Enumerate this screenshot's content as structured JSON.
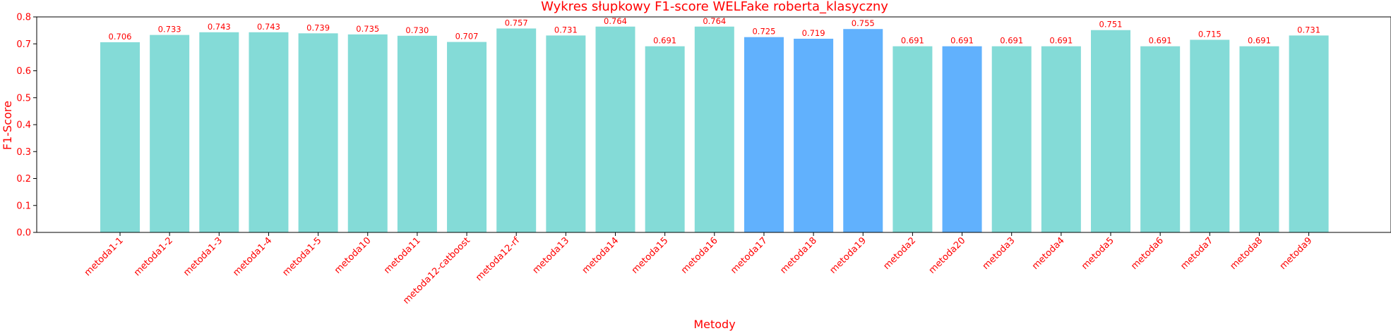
{
  "chart_data": {
    "type": "bar",
    "title": "Wykres słupkowy F1-score WELFake roberta_klasyczny",
    "xlabel": "Metody",
    "ylabel": "F1-Score",
    "ylim": [
      0,
      0.8
    ],
    "yticks": [
      "0.0",
      "0.1",
      "0.2",
      "0.3",
      "0.4",
      "0.5",
      "0.6",
      "0.7",
      "0.8"
    ],
    "grid": false,
    "categories": [
      "metoda1-1",
      "metoda1-2",
      "metoda1-3",
      "metoda1-4",
      "metoda1-5",
      "metoda10",
      "metoda11",
      "metoda12-catboost",
      "metoda12-rf",
      "metoda13",
      "metoda14",
      "metoda15",
      "metoda16",
      "metoda17",
      "metoda18",
      "metoda19",
      "metoda2",
      "metoda20",
      "metoda3",
      "metoda4",
      "metoda5",
      "metoda6",
      "metoda7",
      "metoda8",
      "metoda9"
    ],
    "values": [
      0.706,
      0.733,
      0.743,
      0.743,
      0.739,
      0.735,
      0.73,
      0.707,
      0.757,
      0.731,
      0.764,
      0.691,
      0.764,
      0.725,
      0.719,
      0.755,
      0.691,
      0.691,
      0.691,
      0.691,
      0.751,
      0.691,
      0.715,
      0.691,
      0.731
    ],
    "value_labels": [
      "0.706",
      "0.733",
      "0.743",
      "0.743",
      "0.739",
      "0.735",
      "0.730",
      "0.707",
      "0.757",
      "0.731",
      "0.764",
      "0.691",
      "0.764",
      "0.725",
      "0.719",
      "0.755",
      "0.691",
      "0.691",
      "0.691",
      "0.691",
      "0.751",
      "0.691",
      "0.715",
      "0.691",
      "0.731"
    ],
    "highlighted": [
      "metoda17",
      "metoda18",
      "metoda19",
      "metoda20"
    ],
    "colors": {
      "bar": "#84dbd7",
      "highlight": "#61b1fd",
      "text": "#ff0000",
      "axis": "#000000"
    }
  }
}
